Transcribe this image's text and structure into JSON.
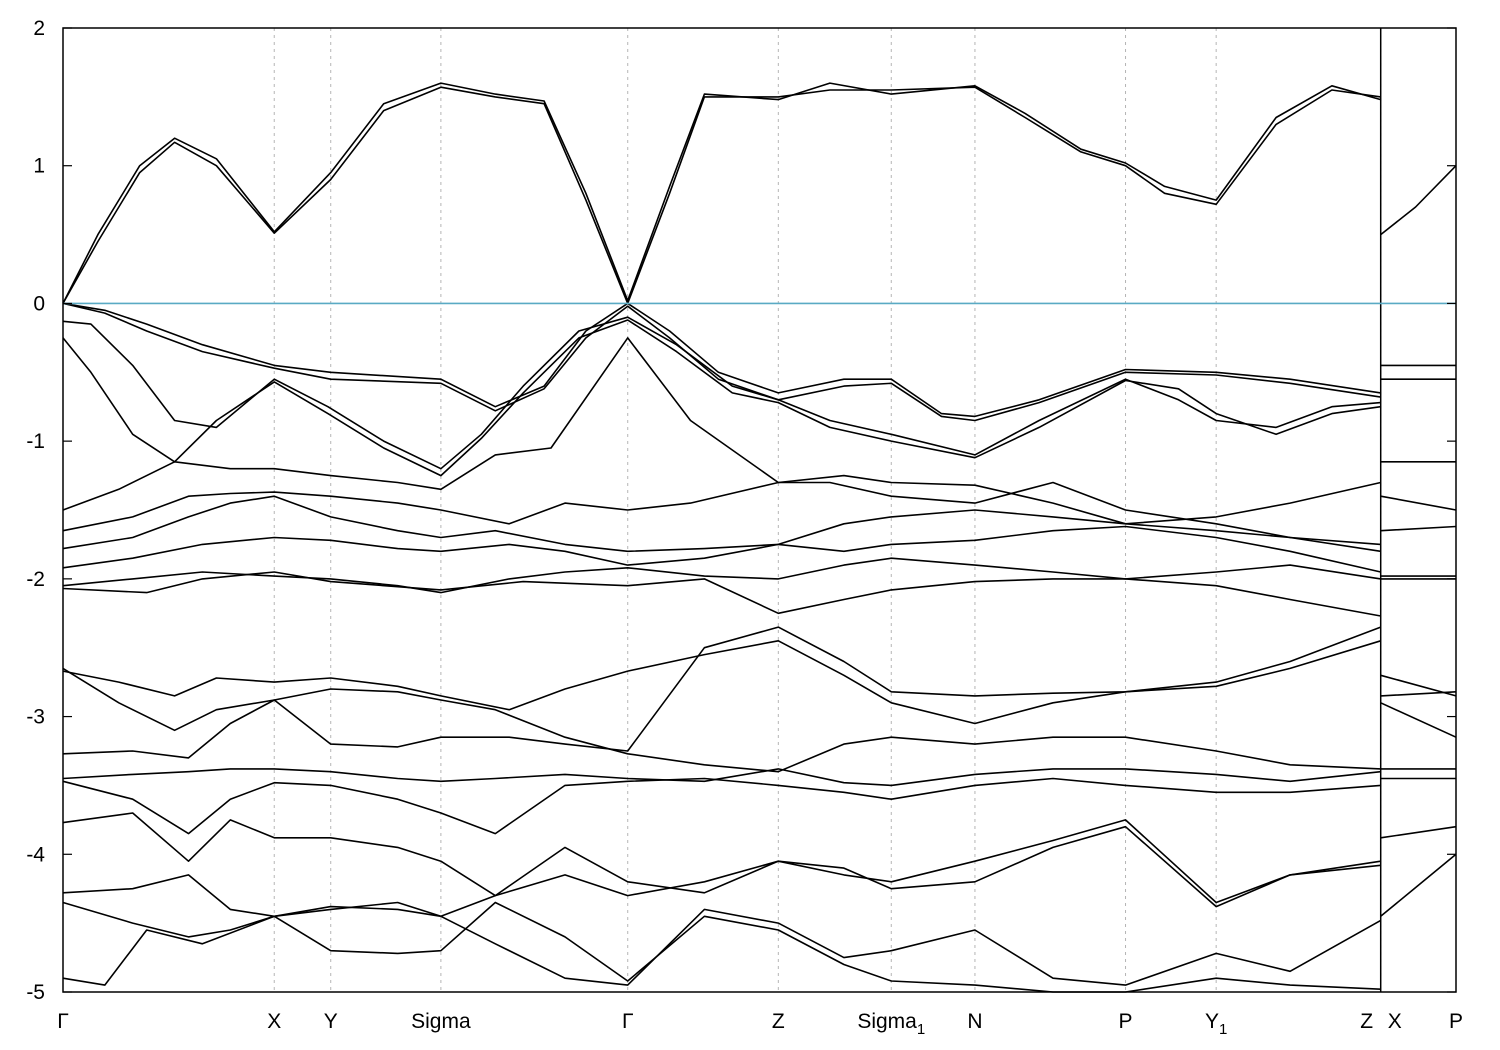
{
  "chart_data": {
    "type": "line",
    "title": "",
    "xlabel": "",
    "ylabel": "",
    "ylim": [
      -5,
      2
    ],
    "y_ticks": [
      "2",
      "1",
      "0",
      "-1",
      "-2",
      "-3",
      "-4",
      "-5"
    ],
    "y_tick_values": [
      2,
      1,
      0,
      -1,
      -2,
      -3,
      -4,
      -5
    ],
    "k_points": [
      {
        "label": "Γ",
        "sub": "",
        "x": 0
      },
      {
        "label": "X",
        "sub": "",
        "x": 1.515
      },
      {
        "label": "Y",
        "sub": "",
        "x": 1.92
      },
      {
        "label": "Sigma",
        "sub": "",
        "x": 2.71
      },
      {
        "label": "Γ",
        "sub": "",
        "x": 4.05
      },
      {
        "label": "Z",
        "sub": "",
        "x": 5.13
      },
      {
        "label": "Sigma",
        "sub": "1",
        "x": 5.94
      },
      {
        "label": "N",
        "sub": "",
        "x": 6.54
      },
      {
        "label": "P",
        "sub": "",
        "x": 7.62
      },
      {
        "label": "Y",
        "sub": "1",
        "x": 8.27
      },
      {
        "label": "Z",
        "sub": "",
        "x": 9.45
      },
      {
        "label": "X",
        "sub": "",
        "x": 9.45
      },
      {
        "label": "P",
        "sub": "",
        "x": 9.99
      }
    ],
    "xlim": [
      0,
      9.99
    ],
    "path_break_x": 9.45,
    "fermi_level": 0,
    "fermi_color": "#5aaac4",
    "grid": "vertical dashed at high-symmetry points",
    "band_color": "#000000",
    "series": [
      {
        "x": [
          0,
          0.25,
          0.55,
          0.8,
          1.1,
          1.515,
          1.92,
          2.3,
          2.71,
          3.1,
          3.45,
          3.75,
          4.05,
          4.35,
          4.6,
          5.13,
          5.5,
          5.94,
          6.54,
          6.9,
          7.3,
          7.62,
          7.9,
          8.27,
          8.7,
          9.1,
          9.45,
          9.45,
          9.7,
          9.99
        ],
        "y": [
          0,
          0.45,
          0.95,
          1.17,
          1.0,
          0.51,
          0.9,
          1.4,
          1.57,
          1.5,
          1.45,
          0.75,
          0,
          0.8,
          1.5,
          1.5,
          1.55,
          1.55,
          1.57,
          1.35,
          1.1,
          1.0,
          0.8,
          0.72,
          1.3,
          1.55,
          1.5,
          0.5,
          0.7,
          1.0
        ]
      },
      {
        "x": [
          0,
          0.25,
          0.55,
          0.8,
          1.1,
          1.515,
          1.92,
          2.3,
          2.71,
          3.1,
          3.45,
          3.75,
          4.05,
          4.35,
          4.6,
          5.13,
          5.5,
          5.94,
          6.54,
          6.9,
          7.3,
          7.62,
          7.9,
          8.27,
          8.7,
          9.1,
          9.45
        ],
        "y": [
          0,
          0.5,
          1.0,
          1.2,
          1.05,
          0.52,
          0.95,
          1.45,
          1.6,
          1.52,
          1.47,
          0.8,
          0.02,
          0.85,
          1.52,
          1.48,
          1.6,
          1.52,
          1.58,
          1.38,
          1.12,
          1.02,
          0.85,
          0.75,
          1.35,
          1.58,
          1.48
        ]
      },
      {
        "x": [
          0,
          0.3,
          0.6,
          1.0,
          1.515,
          1.92,
          2.71,
          3.1,
          3.45,
          3.75,
          4.05,
          4.35,
          4.7,
          5.13,
          5.6,
          5.94,
          6.3,
          6.54,
          7.0,
          7.62,
          8.27,
          8.8,
          9.45,
          9.45,
          9.99
        ],
        "y": [
          0,
          -0.05,
          -0.15,
          -0.3,
          -0.45,
          -0.5,
          -0.55,
          -0.75,
          -0.6,
          -0.2,
          0,
          -0.2,
          -0.5,
          -0.65,
          -0.55,
          -0.55,
          -0.8,
          -0.82,
          -0.7,
          -0.48,
          -0.5,
          -0.55,
          -0.65,
          -0.45,
          -0.45
        ]
      },
      {
        "x": [
          0,
          0.3,
          0.6,
          1.0,
          1.515,
          1.92,
          2.71,
          3.1,
          3.45,
          3.75,
          4.05,
          4.35,
          4.7,
          5.13,
          5.6,
          5.94,
          6.3,
          6.54,
          7.0,
          7.62,
          8.27,
          8.8,
          9.45,
          9.45,
          9.99
        ],
        "y": [
          0,
          -0.07,
          -0.2,
          -0.35,
          -0.47,
          -0.55,
          -0.58,
          -0.78,
          -0.62,
          -0.25,
          -0.02,
          -0.25,
          -0.55,
          -0.7,
          -0.6,
          -0.58,
          -0.82,
          -0.85,
          -0.72,
          -0.5,
          -0.52,
          -0.58,
          -0.68,
          -0.55,
          -0.55
        ]
      },
      {
        "x": [
          0,
          0.2,
          0.5,
          0.8,
          1.1,
          1.515,
          1.9,
          2.3,
          2.71,
          3.0,
          3.3,
          3.7,
          4.05,
          4.4,
          4.8,
          5.13,
          5.5,
          5.94,
          6.54,
          7.0,
          7.62,
          8.0,
          8.27,
          8.7,
          9.1,
          9.45
        ],
        "y": [
          -0.13,
          -0.15,
          -0.45,
          -0.85,
          -0.9,
          -0.55,
          -0.75,
          -1.0,
          -1.2,
          -0.95,
          -0.6,
          -0.2,
          -0.1,
          -0.3,
          -0.6,
          -0.7,
          -0.85,
          -0.95,
          -1.1,
          -0.85,
          -0.55,
          -0.7,
          -0.85,
          -0.9,
          -0.75,
          -0.72
        ]
      },
      {
        "x": [
          0,
          0.2,
          0.5,
          0.8,
          1.1,
          1.515,
          1.9,
          2.3,
          2.71,
          3.0,
          3.3,
          3.7,
          4.05,
          4.4,
          4.8,
          5.13,
          5.5,
          5.94,
          6.54,
          7.0,
          7.62,
          8.0,
          8.27,
          8.7,
          9.1,
          9.45
        ],
        "y": [
          -0.25,
          -0.5,
          -0.95,
          -1.15,
          -0.85,
          -0.57,
          -0.8,
          -1.05,
          -1.25,
          -0.98,
          -0.65,
          -0.25,
          -0.12,
          -0.35,
          -0.65,
          -0.72,
          -0.9,
          -1.0,
          -1.12,
          -0.9,
          -0.56,
          -0.62,
          -0.8,
          -0.95,
          -0.8,
          -0.75
        ]
      },
      {
        "x": [
          0,
          0.4,
          0.8,
          1.2,
          1.515,
          1.92,
          2.4,
          2.71,
          3.1,
          3.5,
          4.05,
          4.5,
          5.13,
          5.5,
          5.94,
          6.54,
          7.1,
          7.62,
          8.27,
          8.8,
          9.45,
          9.45,
          9.99
        ],
        "y": [
          -1.5,
          -1.35,
          -1.15,
          -1.2,
          -1.2,
          -1.25,
          -1.3,
          -1.35,
          -1.1,
          -1.05,
          -0.25,
          -0.85,
          -1.3,
          -1.3,
          -1.4,
          -1.45,
          -1.3,
          -1.5,
          -1.6,
          -1.7,
          -1.8,
          -1.15,
          -1.15
        ]
      },
      {
        "x": [
          0,
          0.5,
          0.9,
          1.2,
          1.515,
          1.92,
          2.4,
          2.71,
          3.2,
          3.6,
          4.05,
          4.5,
          5.13,
          5.6,
          5.94,
          6.54,
          7.1,
          7.62,
          8.27,
          8.8,
          9.45,
          9.45,
          9.99
        ],
        "y": [
          -1.65,
          -1.55,
          -1.4,
          -1.38,
          -1.37,
          -1.4,
          -1.45,
          -1.5,
          -1.6,
          -1.45,
          -1.5,
          -1.45,
          -1.3,
          -1.25,
          -1.3,
          -1.32,
          -1.45,
          -1.6,
          -1.55,
          -1.45,
          -1.3,
          -1.4,
          -1.5
        ]
      },
      {
        "x": [
          0,
          0.5,
          0.9,
          1.2,
          1.515,
          1.92,
          2.4,
          2.71,
          3.1,
          3.6,
          4.05,
          4.6,
          5.13,
          5.6,
          5.94,
          6.54,
          7.1,
          7.62,
          8.27,
          8.8,
          9.45,
          9.45,
          9.99
        ],
        "y": [
          -1.78,
          -1.7,
          -1.55,
          -1.45,
          -1.4,
          -1.55,
          -1.65,
          -1.7,
          -1.65,
          -1.75,
          -1.8,
          -1.78,
          -1.75,
          -1.6,
          -1.55,
          -1.5,
          -1.55,
          -1.6,
          -1.65,
          -1.7,
          -1.75,
          -1.65,
          -1.62
        ]
      },
      {
        "x": [
          0,
          0.5,
          1.0,
          1.515,
          1.92,
          2.4,
          2.71,
          3.2,
          3.6,
          4.05,
          4.6,
          5.13,
          5.6,
          5.94,
          6.54,
          7.1,
          7.62,
          8.27,
          8.8,
          9.45,
          9.45,
          9.99
        ],
        "y": [
          -1.92,
          -1.85,
          -1.75,
          -1.7,
          -1.72,
          -1.78,
          -1.8,
          -1.75,
          -1.8,
          -1.9,
          -1.85,
          -1.75,
          -1.8,
          -1.75,
          -1.72,
          -1.65,
          -1.62,
          -1.7,
          -1.8,
          -1.95,
          -1.98,
          -1.98
        ]
      },
      {
        "x": [
          0,
          0.5,
          1.0,
          1.515,
          1.92,
          2.4,
          2.71,
          3.2,
          3.6,
          4.05,
          4.6,
          5.13,
          5.6,
          5.94,
          6.54,
          7.1,
          7.62,
          8.27,
          8.8,
          9.45,
          9.45,
          9.99
        ],
        "y": [
          -2.05,
          -2.0,
          -1.95,
          -1.98,
          -2.0,
          -2.05,
          -2.1,
          -2.0,
          -1.95,
          -1.92,
          -1.98,
          -2.0,
          -1.9,
          -1.85,
          -1.9,
          -1.95,
          -2.0,
          -1.95,
          -1.9,
          -2.0,
          -2.0,
          -2.0
        ]
      },
      {
        "x": [
          0,
          0.6,
          1.0,
          1.515,
          1.92,
          2.71,
          3.3,
          4.05,
          4.6,
          5.13,
          5.6,
          5.94,
          6.54,
          7.1,
          7.62,
          8.27,
          8.8,
          9.45
        ],
        "y": [
          -2.07,
          -2.1,
          -2.0,
          -1.95,
          -2.02,
          -2.08,
          -2.02,
          -2.05,
          -2.0,
          -2.25,
          -2.15,
          -2.08,
          -2.02,
          -2.0,
          -2.0,
          -2.05,
          -2.15,
          -2.27
        ]
      },
      {
        "x": [
          0,
          0.4,
          0.8,
          1.1,
          1.515,
          1.92,
          2.4,
          2.71,
          3.2,
          3.6,
          4.05,
          4.6,
          5.13,
          5.6,
          5.94,
          6.54,
          7.1,
          7.62,
          8.27,
          8.8,
          9.45,
          9.45,
          9.99
        ],
        "y": [
          -2.65,
          -2.9,
          -3.1,
          -2.95,
          -2.88,
          -3.2,
          -3.22,
          -3.15,
          -3.15,
          -3.2,
          -3.25,
          -2.5,
          -2.35,
          -2.6,
          -2.82,
          -2.85,
          -2.83,
          -2.82,
          -2.75,
          -2.6,
          -2.35,
          -2.7,
          -2.85
        ]
      },
      {
        "x": [
          0,
          0.4,
          0.8,
          1.1,
          1.515,
          1.92,
          2.4,
          2.71,
          3.2,
          3.6,
          4.05,
          4.6,
          5.13,
          5.6,
          5.94,
          6.54,
          7.1,
          7.62,
          8.27,
          8.8,
          9.45,
          9.45,
          9.99
        ],
        "y": [
          -2.67,
          -2.75,
          -2.85,
          -2.72,
          -2.75,
          -2.72,
          -2.78,
          -2.85,
          -2.95,
          -2.8,
          -2.67,
          -2.55,
          -2.45,
          -2.7,
          -2.9,
          -3.05,
          -2.9,
          -2.82,
          -2.78,
          -2.65,
          -2.45,
          -2.85,
          -2.82
        ]
      },
      {
        "x": [
          0,
          0.5,
          0.9,
          1.2,
          1.515,
          1.92,
          2.4,
          2.71,
          3.1,
          3.6,
          4.05,
          4.6,
          5.13,
          5.6,
          5.94,
          6.54,
          7.1,
          7.62,
          8.27,
          8.8,
          9.45,
          9.45,
          9.99
        ],
        "y": [
          -3.27,
          -3.25,
          -3.3,
          -3.05,
          -2.88,
          -2.8,
          -2.82,
          -2.88,
          -2.95,
          -3.15,
          -3.27,
          -3.35,
          -3.4,
          -3.2,
          -3.15,
          -3.2,
          -3.15,
          -3.15,
          -3.25,
          -3.35,
          -3.38,
          -2.9,
          -3.15
        ]
      },
      {
        "x": [
          0,
          0.5,
          0.9,
          1.2,
          1.515,
          1.92,
          2.4,
          2.71,
          3.1,
          3.6,
          4.05,
          4.6,
          5.13,
          5.6,
          5.94,
          6.54,
          7.1,
          7.62,
          8.27,
          8.8,
          9.45,
          9.45,
          9.99
        ],
        "y": [
          -3.45,
          -3.42,
          -3.4,
          -3.38,
          -3.38,
          -3.4,
          -3.45,
          -3.47,
          -3.45,
          -3.42,
          -3.45,
          -3.47,
          -3.38,
          -3.48,
          -3.5,
          -3.42,
          -3.38,
          -3.38,
          -3.42,
          -3.47,
          -3.4,
          -3.38,
          -3.38
        ]
      },
      {
        "x": [
          0,
          0.5,
          0.9,
          1.2,
          1.515,
          1.92,
          2.4,
          2.71,
          3.1,
          3.6,
          4.05,
          4.6,
          5.13,
          5.6,
          5.94,
          6.54,
          7.1,
          7.62,
          8.27,
          8.8,
          9.45,
          9.45,
          9.99
        ],
        "y": [
          -3.47,
          -3.6,
          -3.85,
          -3.6,
          -3.48,
          -3.5,
          -3.6,
          -3.7,
          -3.85,
          -3.5,
          -3.47,
          -3.45,
          -3.5,
          -3.55,
          -3.6,
          -3.5,
          -3.45,
          -3.5,
          -3.55,
          -3.55,
          -3.5,
          -3.45,
          -3.45
        ]
      },
      {
        "x": [
          0,
          0.5,
          0.9,
          1.2,
          1.515,
          1.92,
          2.4,
          2.71,
          3.1,
          3.6,
          4.05,
          4.6,
          5.13,
          5.6,
          5.94,
          6.54,
          7.1,
          7.62,
          8.27,
          8.8,
          9.45,
          9.45,
          9.99
        ],
        "y": [
          -3.77,
          -3.7,
          -4.05,
          -3.75,
          -3.88,
          -3.88,
          -3.95,
          -4.05,
          -4.3,
          -3.95,
          -4.2,
          -4.28,
          -4.05,
          -4.1,
          -4.25,
          -4.2,
          -3.95,
          -3.8,
          -4.38,
          -4.15,
          -4.05,
          -3.88,
          -3.8
        ]
      },
      {
        "x": [
          0,
          0.5,
          0.9,
          1.2,
          1.515,
          1.92,
          2.4,
          2.71,
          3.1,
          3.6,
          4.05,
          4.6,
          5.13,
          5.6,
          5.94,
          6.54,
          7.1,
          7.62,
          8.27,
          8.8,
          9.45,
          9.45,
          9.99
        ],
        "y": [
          -4.28,
          -4.25,
          -4.15,
          -4.4,
          -4.45,
          -4.38,
          -4.4,
          -4.45,
          -4.3,
          -4.15,
          -4.3,
          -4.2,
          -4.05,
          -4.15,
          -4.2,
          -4.05,
          -3.9,
          -3.75,
          -4.35,
          -4.15,
          -4.08,
          -4.45,
          -4.0
        ]
      },
      {
        "x": [
          0,
          0.5,
          0.9,
          1.2,
          1.515,
          1.92,
          2.4,
          2.71,
          3.1,
          3.6,
          4.05,
          4.6,
          5.13,
          5.6,
          5.94,
          6.54,
          7.1,
          7.62,
          8.27,
          8.8,
          9.45
        ],
        "y": [
          -4.35,
          -4.5,
          -4.6,
          -4.55,
          -4.45,
          -4.4,
          -4.35,
          -4.45,
          -4.65,
          -4.9,
          -4.95,
          -4.4,
          -4.5,
          -4.75,
          -4.7,
          -4.55,
          -4.9,
          -4.95,
          -4.72,
          -4.85,
          -4.48
        ]
      },
      {
        "x": [
          0,
          0.3,
          0.6,
          1.0,
          1.515,
          1.92,
          2.4,
          2.71,
          3.1,
          3.6,
          4.05,
          4.6,
          5.13,
          5.6,
          5.94,
          6.54,
          7.1,
          7.62,
          8.27,
          8.8,
          9.45
        ],
        "y": [
          -4.9,
          -4.95,
          -4.55,
          -4.65,
          -4.45,
          -4.7,
          -4.72,
          -4.7,
          -4.35,
          -4.6,
          -4.92,
          -4.45,
          -4.55,
          -4.8,
          -4.92,
          -4.95,
          -5.0,
          -5.0,
          -4.9,
          -4.95,
          -4.98
        ]
      }
    ]
  }
}
